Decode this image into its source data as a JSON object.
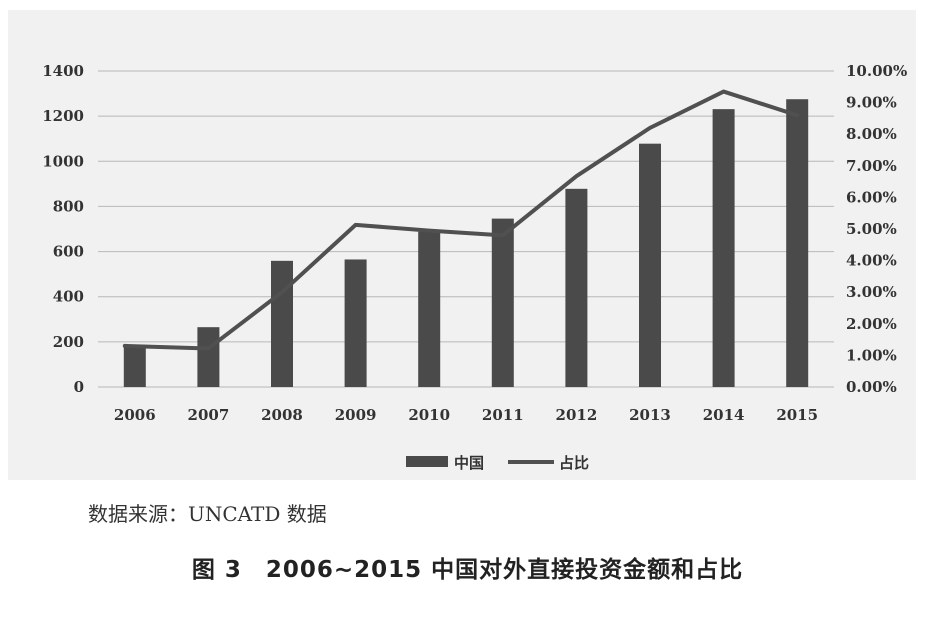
{
  "chart_data": {
    "type": "bar+line",
    "categories": [
      "2006",
      "2007",
      "2008",
      "2009",
      "2010",
      "2011",
      "2012",
      "2013",
      "2014",
      "2015"
    ],
    "series": [
      {
        "name": "中国",
        "type": "bar",
        "axis": "left",
        "values": [
          176,
          265,
          559,
          565,
          688,
          746,
          878,
          1078,
          1231,
          1275
        ]
      },
      {
        "name": "占比",
        "type": "line",
        "axis": "right",
        "values": [
          0.013,
          0.0122,
          0.03,
          0.0513,
          0.0495,
          0.048,
          0.0667,
          0.082,
          0.0935,
          0.086
        ]
      }
    ],
    "y_left": {
      "min": 0,
      "max": 1400,
      "ticks": [
        "1400",
        "1200",
        "1000",
        "800",
        "600",
        "400",
        "200",
        "0"
      ]
    },
    "y_right": {
      "min": 0,
      "max": 0.1,
      "ticks": [
        "10.00%",
        "9.00%",
        "8.00%",
        "7.00%",
        "6.00%",
        "5.00%",
        "4.00%",
        "3.00%",
        "2.00%",
        "1.00%",
        "0.00%"
      ]
    },
    "grid": true,
    "legend": "bottom",
    "colors": {
      "bar": "#4a4a4a",
      "line": "#505050",
      "grid": "#b8b8b8",
      "background": "#f1f1f1"
    }
  },
  "source_note": "数据来源：UNCATD 数据",
  "caption": "图 3　2006~2015 中国对外直接投资金额和占比"
}
